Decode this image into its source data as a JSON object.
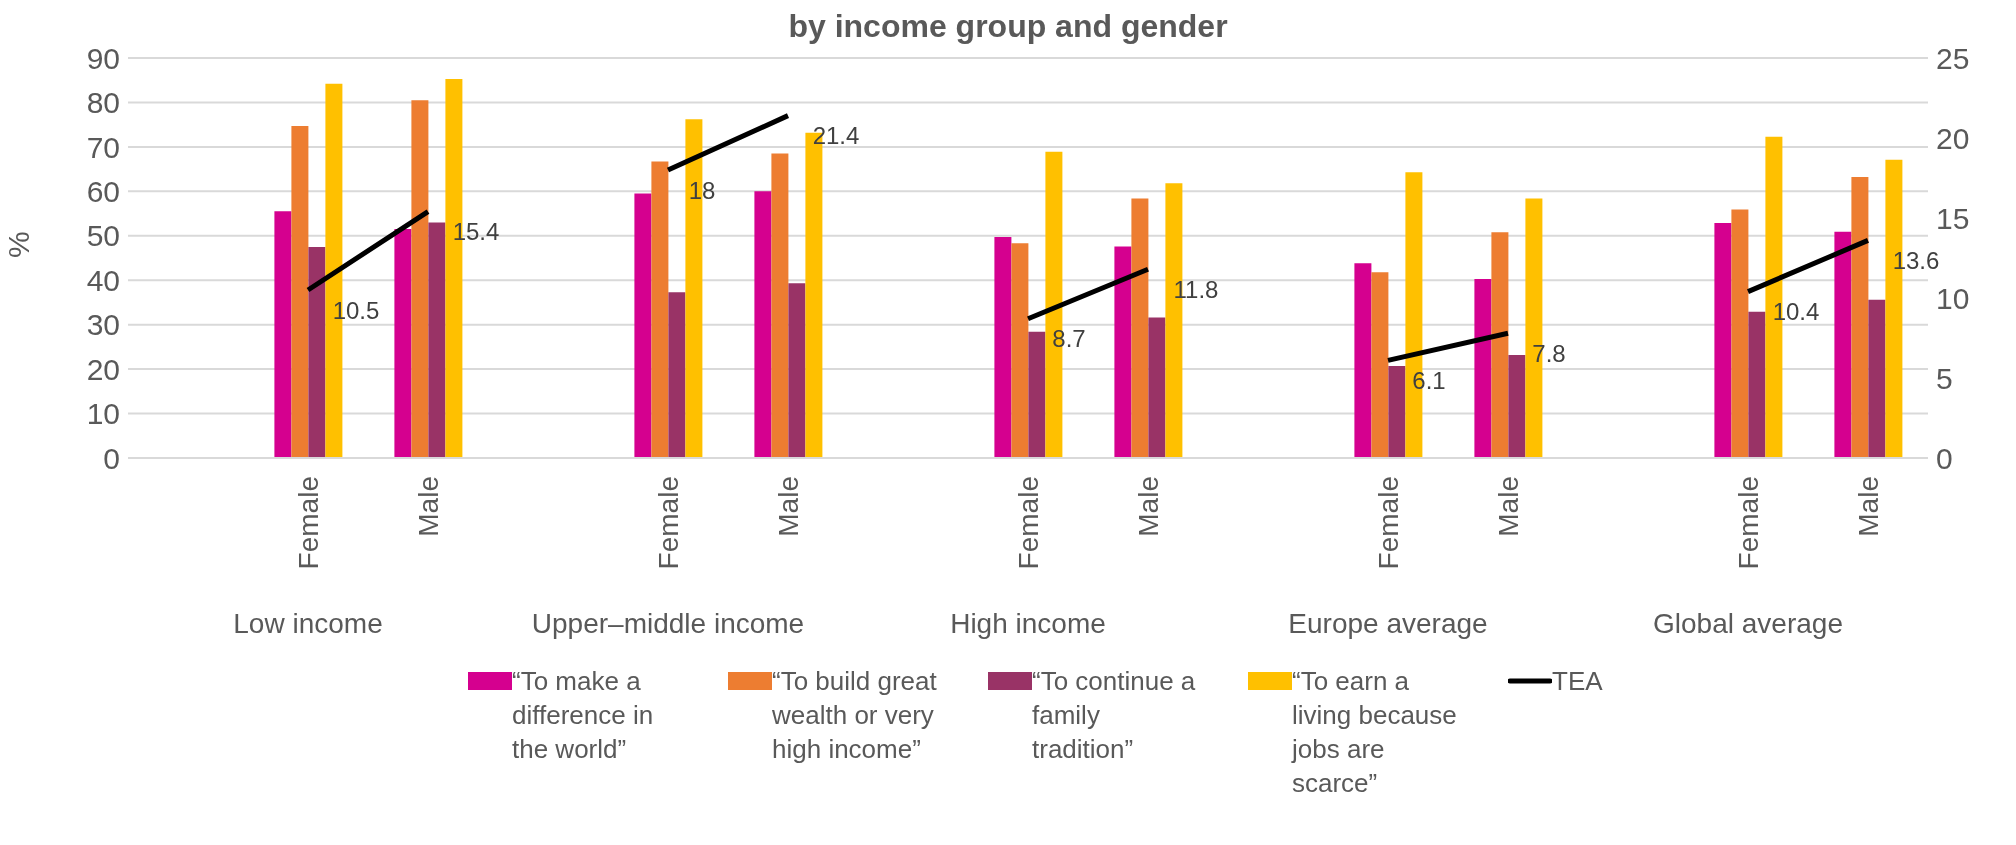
{
  "chart_data": {
    "type": "bar",
    "title": "by income group and gender",
    "ylabel": "%",
    "categories": [
      null,
      "Female",
      "Male",
      null,
      "Female",
      "Male",
      null,
      "Female",
      "Male",
      null,
      "Female",
      "Male",
      null,
      "Female",
      "Male"
    ],
    "annotations": [
      "Low income",
      "Upper–middle income",
      "High income",
      "Europe average",
      "Global average"
    ],
    "series": [
      {
        "name": "“To make a difference in the world”",
        "color": "#d5008f",
        "values": [
          null,
          55.5,
          51.5,
          null,
          59.5,
          60,
          null,
          49.7,
          47.6,
          null,
          43.8,
          40.3,
          null,
          52.9,
          50.9
        ]
      },
      {
        "name": "“To build great wealth or very high income”",
        "color": "#ed7d31",
        "values": [
          null,
          74.7,
          80.5,
          null,
          66.7,
          68.5,
          null,
          48.3,
          58.4,
          null,
          41.8,
          50.8,
          null,
          55.9,
          63.2
        ]
      },
      {
        "name": "“To continue a family tradition”",
        "color": "#993366",
        "values": [
          null,
          47.5,
          53,
          null,
          37.3,
          39.3,
          null,
          28.4,
          31.6,
          null,
          20.7,
          23.2,
          null,
          32.9,
          35.6
        ]
      },
      {
        "name": "“To earn a living because jobs are scarce”",
        "color": "#ffc000",
        "values": [
          null,
          84.2,
          85.3,
          null,
          76.2,
          73.2,
          null,
          68.9,
          61.8,
          null,
          64.3,
          58.4,
          null,
          72.3,
          67.1
        ]
      },
      {
        "name": "TEA",
        "type": "line",
        "axis": "y2",
        "color": "#000000",
        "values": [
          null,
          10.5,
          15.4,
          null,
          18,
          21.4,
          null,
          8.7,
          11.8,
          null,
          6.1,
          7.8,
          null,
          10.4,
          13.6
        ],
        "value_labels": [
          null,
          "10.5",
          "15.4",
          null,
          "18",
          "21.4",
          null,
          "8.7",
          "11.8",
          null,
          "6.1",
          "7.8",
          null,
          "10.4",
          "13.6"
        ]
      }
    ],
    "ylim": [
      0,
      90
    ],
    "yticks": [
      0,
      10,
      20,
      30,
      40,
      50,
      60,
      70,
      80,
      90
    ],
    "y2lim": [
      0,
      25
    ],
    "y2ticks": [
      0,
      5,
      10,
      15,
      20,
      25
    ],
    "grid": "y",
    "legend": "bottom",
    "marker": "none"
  }
}
